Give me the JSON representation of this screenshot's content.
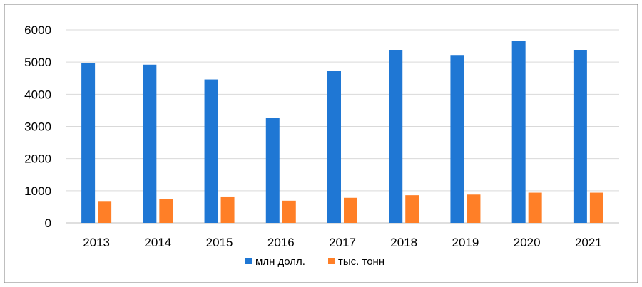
{
  "chart_data": {
    "type": "bar",
    "categories": [
      "2013",
      "2014",
      "2015",
      "2016",
      "2017",
      "2018",
      "2019",
      "2020",
      "2021"
    ],
    "series": [
      {
        "name": "млн долл.",
        "color": "#1F77D4",
        "values": [
          4980,
          4920,
          4460,
          3260,
          4720,
          5380,
          5220,
          5650,
          5380
        ]
      },
      {
        "name": "тыс. тонн",
        "color": "#FF7F27",
        "values": [
          680,
          740,
          820,
          690,
          780,
          860,
          880,
          940,
          940
        ]
      }
    ],
    "yticks": [
      "0",
      "1000",
      "2000",
      "3000",
      "4000",
      "5000",
      "6000"
    ],
    "ylim": [
      0,
      6000
    ],
    "grid": true,
    "legend_position": "bottom",
    "colors": {
      "grid": "#d9d9d9",
      "axis": "#bfbfbf",
      "border": "#7f7f7f"
    }
  }
}
